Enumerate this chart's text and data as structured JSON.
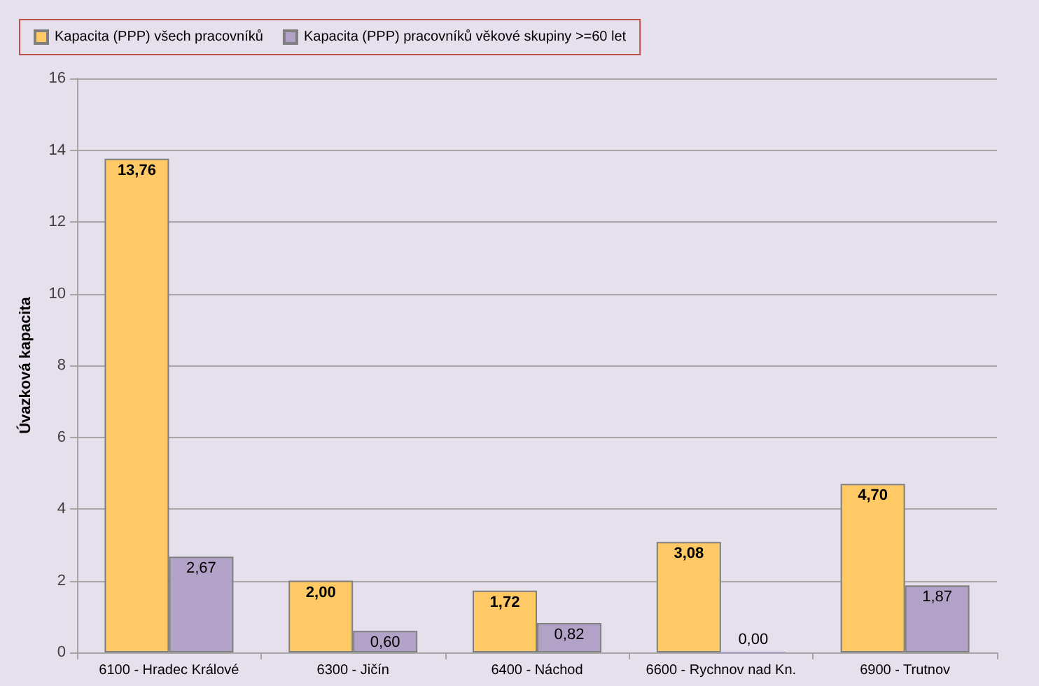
{
  "chart_data": {
    "type": "bar",
    "ylabel": "Úvazková kapacita",
    "categories": [
      "6100 - Hradec Králové",
      "6300 - Jičín",
      "6400 - Náchod",
      "6600 - Rychnov nad Kn.",
      "6900 - Trutnov"
    ],
    "series": [
      {
        "name": "Kapacita (PPP) všech pracovníků",
        "color": "#ffc966",
        "values": [
          13.76,
          2.0,
          1.72,
          3.08,
          4.7
        ],
        "value_labels": [
          "13,76",
          "2,00",
          "1,72",
          "3,08",
          "4,70"
        ]
      },
      {
        "name": "Kapacita (PPP) pracovníků věkové skupiny >=60 let",
        "color": "#b3a2c7",
        "values": [
          2.67,
          0.6,
          0.82,
          0.0,
          1.87
        ],
        "value_labels": [
          "2,67",
          "0,60",
          "0,82",
          "0,00",
          "1,87"
        ]
      }
    ],
    "ylim": [
      0,
      16
    ],
    "yticks": [
      0,
      2,
      4,
      6,
      8,
      10,
      12,
      14,
      16
    ],
    "grid": "y",
    "legend": "top left"
  }
}
